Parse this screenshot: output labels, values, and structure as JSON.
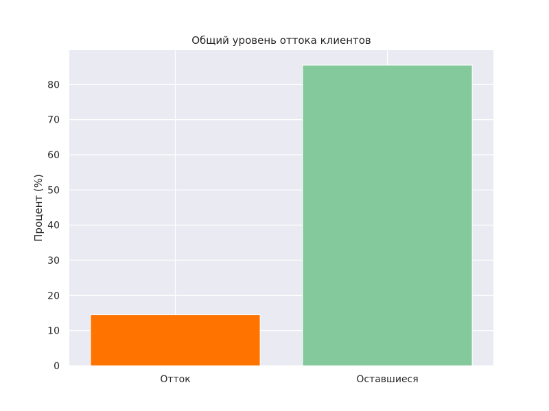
{
  "chart_data": {
    "type": "bar",
    "title": "Общий уровень оттока клиентов",
    "xlabel": "",
    "ylabel": "Процент (%)",
    "categories": [
      "Отток",
      "Оставшиеся"
    ],
    "values": [
      14.5,
      85.5
    ],
    "colors": [
      "#ff7400",
      "#84c99b"
    ],
    "ylim": [
      0,
      89.8
    ],
    "yticks": [
      0,
      10,
      20,
      30,
      40,
      50,
      60,
      70,
      80
    ],
    "grid": true,
    "plot_background": "#eaeaf2",
    "grid_color": "#ffffff"
  }
}
